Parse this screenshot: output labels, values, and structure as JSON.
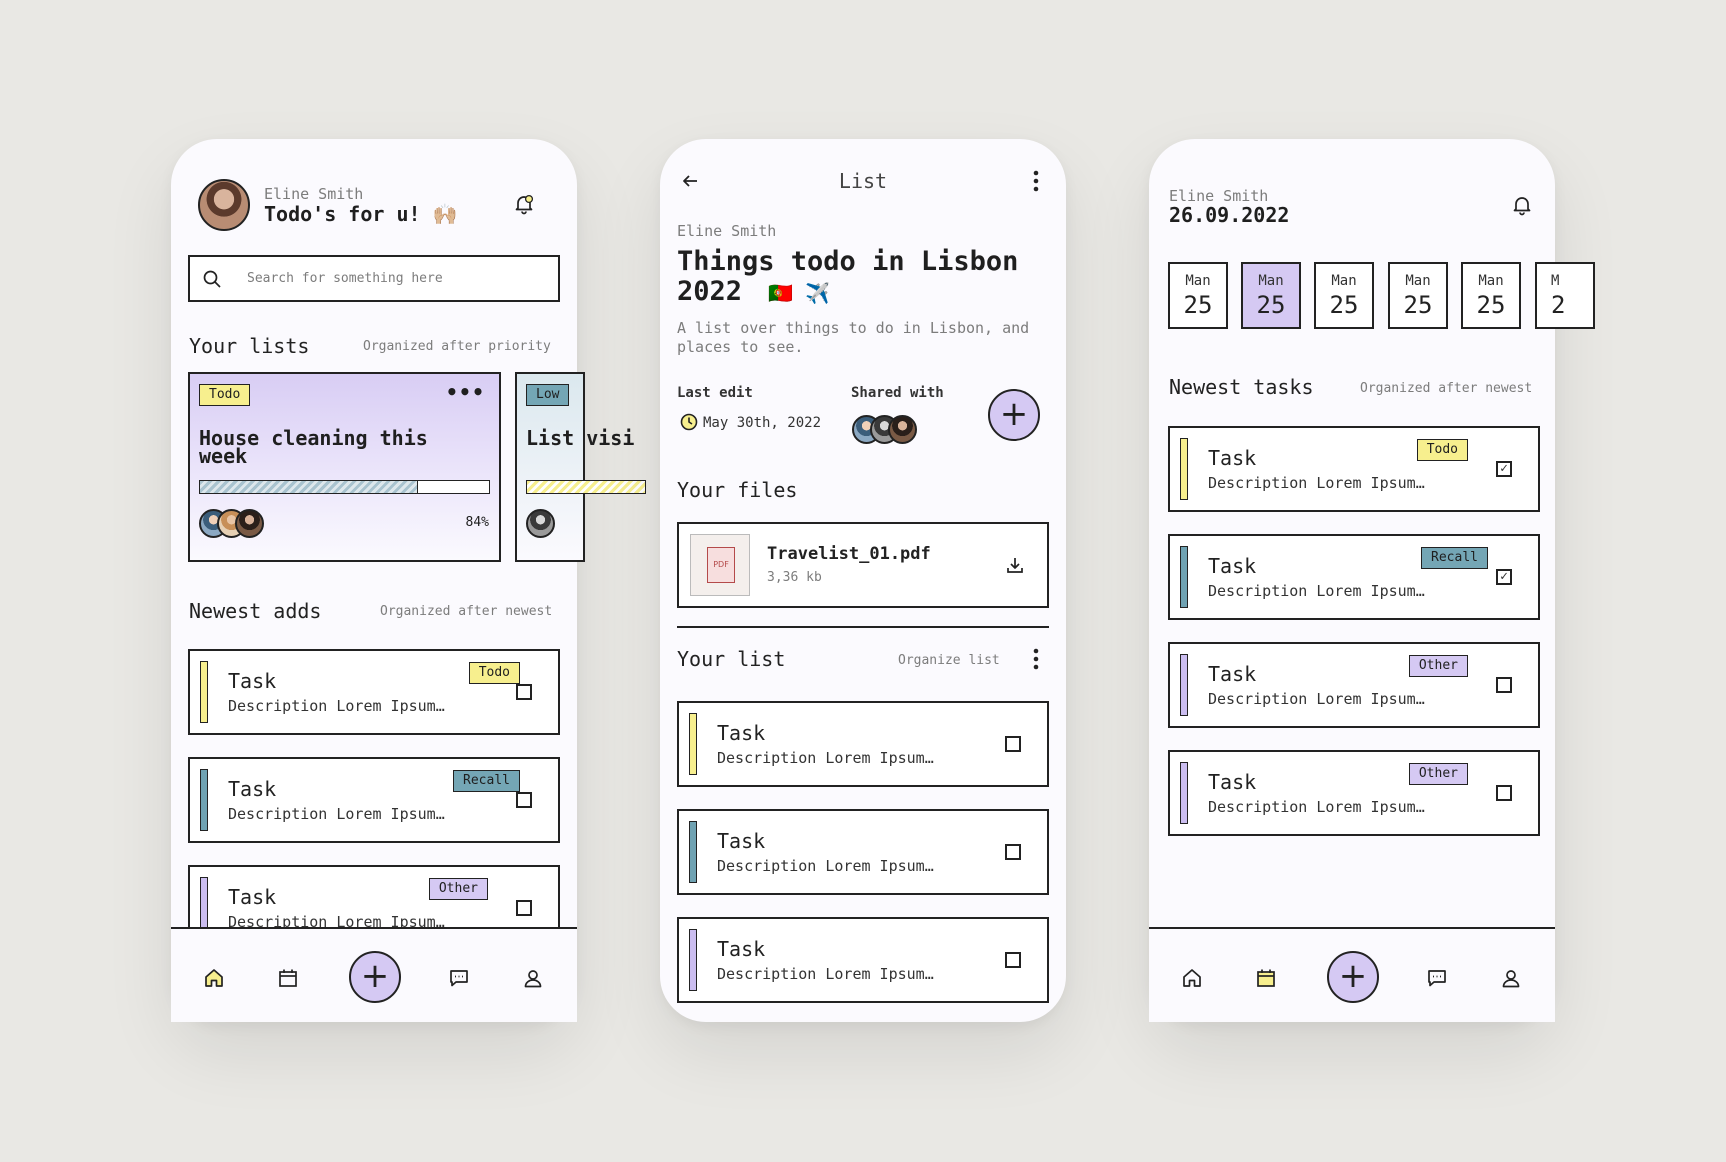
{
  "colors": {
    "yellow": "#f7ef8e",
    "blue": "#74a6b5",
    "violet": "#d5c9f3",
    "ink": "#222222"
  },
  "home": {
    "user_name": "Eline Smith",
    "greeting": "Todo's for u! 🙌🏼",
    "search_placeholder": "Search for something here",
    "lists_title": "Your lists",
    "lists_sub": "Organized after priority",
    "card1": {
      "tag": "Todo",
      "title": "House cleaning this week",
      "progress_percent": 84,
      "progress_label": "84%"
    },
    "card2": {
      "tag": "Low",
      "title": "List visi"
    },
    "adds_title": "Newest adds",
    "adds_sub": "Organized after newest",
    "tasks": [
      {
        "title": "Task",
        "desc": "Description Lorem Ipsum…",
        "tag": "Todo"
      },
      {
        "title": "Task",
        "desc": "Description Lorem Ipsum…",
        "tag": "Recall"
      },
      {
        "title": "Task",
        "desc": "Description Lorem Ipsum…",
        "tag": "Other"
      }
    ]
  },
  "list": {
    "header": "List",
    "owner": "Eline Smith",
    "title": "Things todo in Lisbon 2022",
    "flags": "🇵🇹 ✈️",
    "description": "A list over things to do in Lisbon, and places to see.",
    "last_edit_label": "Last edit",
    "last_edit_value": "May 30th, 2022",
    "shared_label": "Shared with",
    "files_title": "Your files",
    "file": {
      "icon_text": "PDF",
      "name": "Travelist_01.pdf",
      "size": "3,36 kb"
    },
    "list_title": "Your list",
    "list_sub": "Organize list",
    "tasks": [
      {
        "title": "Task",
        "desc": "Description Lorem Ipsum…"
      },
      {
        "title": "Task",
        "desc": "Description Lorem Ipsum…"
      },
      {
        "title": "Task",
        "desc": "Description Lorem Ipsum…"
      }
    ]
  },
  "calendar": {
    "user_name": "Eline Smith",
    "date": "26.09.2022",
    "days": [
      {
        "name": "Man",
        "num": "25"
      },
      {
        "name": "Man",
        "num": "25"
      },
      {
        "name": "Man",
        "num": "25"
      },
      {
        "name": "Man",
        "num": "25"
      },
      {
        "name": "Man",
        "num": "25"
      },
      {
        "name": "M",
        "num": "2"
      }
    ],
    "selected_day_index": 1,
    "tasks_title": "Newest tasks",
    "tasks_sub": "Organized after newest",
    "tasks": [
      {
        "title": "Task",
        "desc": "Description Lorem Ipsum…",
        "tag": "Todo",
        "checked": "✓"
      },
      {
        "title": "Task",
        "desc": "Description Lorem Ipsum…",
        "tag": "Recall",
        "checked": "✓"
      },
      {
        "title": "Task",
        "desc": "Description Lorem Ipsum…",
        "tag": "Other",
        "checked": ""
      },
      {
        "title": "Task",
        "desc": "Description Lorem Ipsum…",
        "tag": "Other",
        "checked": ""
      }
    ]
  },
  "nav": {
    "fab": "+",
    "icons": [
      "home-icon",
      "calendar-icon",
      "add-icon",
      "chat-icon",
      "profile-icon"
    ]
  }
}
